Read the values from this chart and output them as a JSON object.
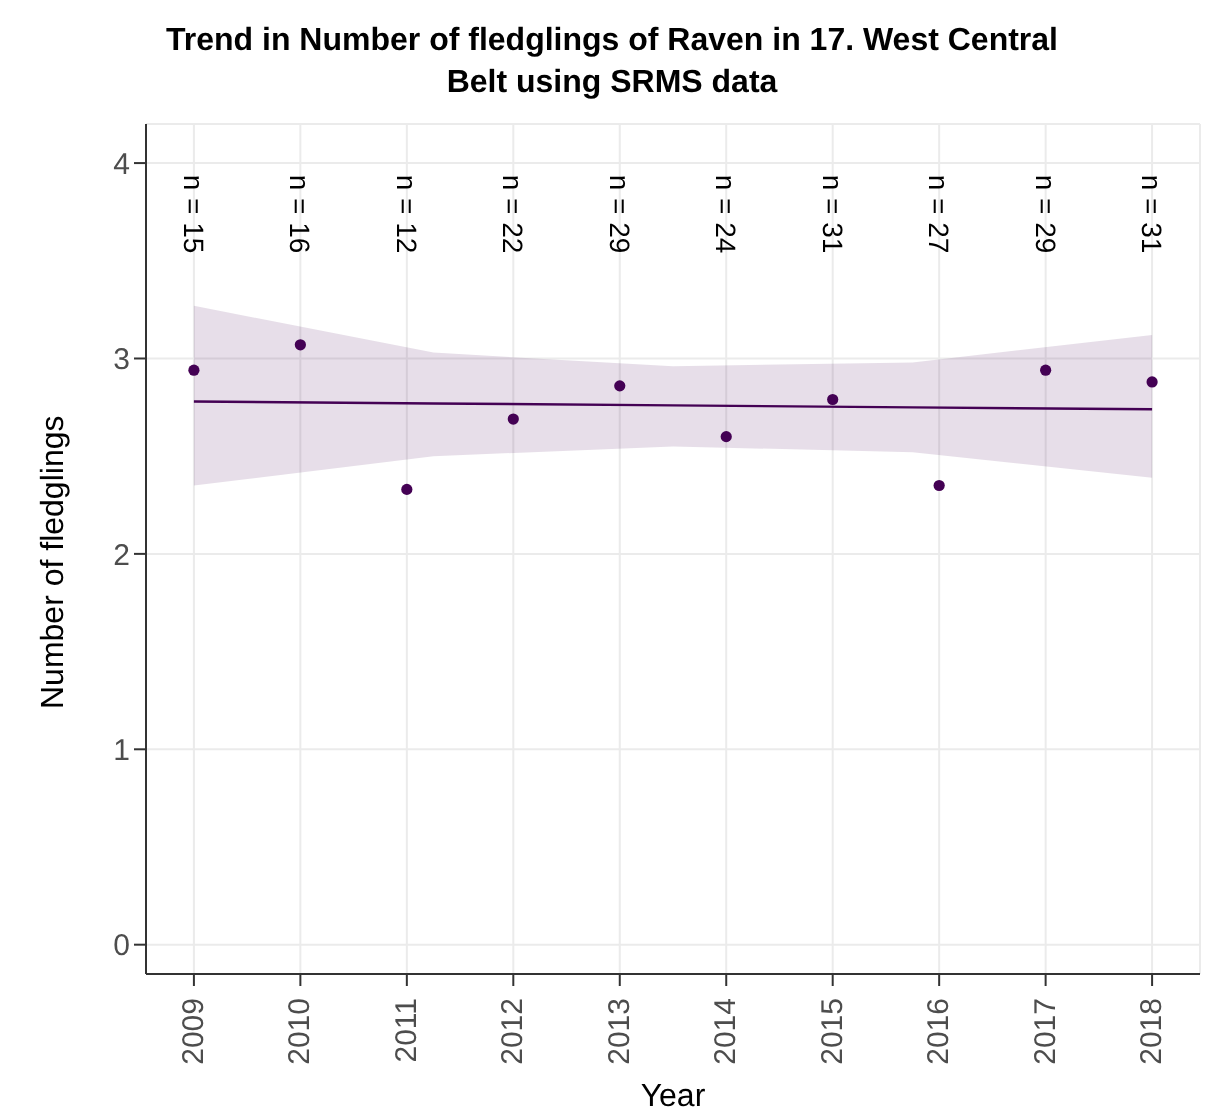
{
  "chart_data": {
    "type": "scatter",
    "title": "Trend in Number of fledglings of Raven in 17. West Central Belt using SRMS data",
    "xlabel": "Year",
    "ylabel": "Number of fledglings",
    "xlim": [
      2008.55,
      2018.45
    ],
    "xticks": [
      2009,
      2010,
      2011,
      2012,
      2013,
      2014,
      2015,
      2016,
      2017,
      2018
    ],
    "ylim": [
      -0.15,
      4.2
    ],
    "yticks": [
      0,
      1,
      2,
      3,
      4
    ],
    "grid": true,
    "series": [
      {
        "color": "#440154",
        "marker": "circle",
        "x": [
          2009,
          2010,
          2011,
          2012,
          2013,
          2014,
          2015,
          2016,
          2017,
          2018
        ],
        "values": [
          2.94,
          3.07,
          2.33,
          2.69,
          2.86,
          2.6,
          2.79,
          2.35,
          2.94,
          2.88
        ]
      },
      {
        "type": "line",
        "color": "#440154",
        "x": [
          2009,
          2011.25,
          2013.5,
          2015.75,
          2018
        ],
        "values": [
          2.78,
          2.77,
          2.76,
          2.75,
          2.74
        ],
        "lower": [
          2.35,
          2.5,
          2.55,
          2.52,
          2.39
        ],
        "upper": [
          3.27,
          3.03,
          2.96,
          2.98,
          3.12
        ]
      }
    ],
    "annotations": [
      "n = 15",
      "n = 16",
      "n = 12",
      "n = 22",
      "n = 29",
      "n = 24",
      "n = 31",
      "n = 27",
      "n = 29",
      "n = 31"
    ]
  }
}
